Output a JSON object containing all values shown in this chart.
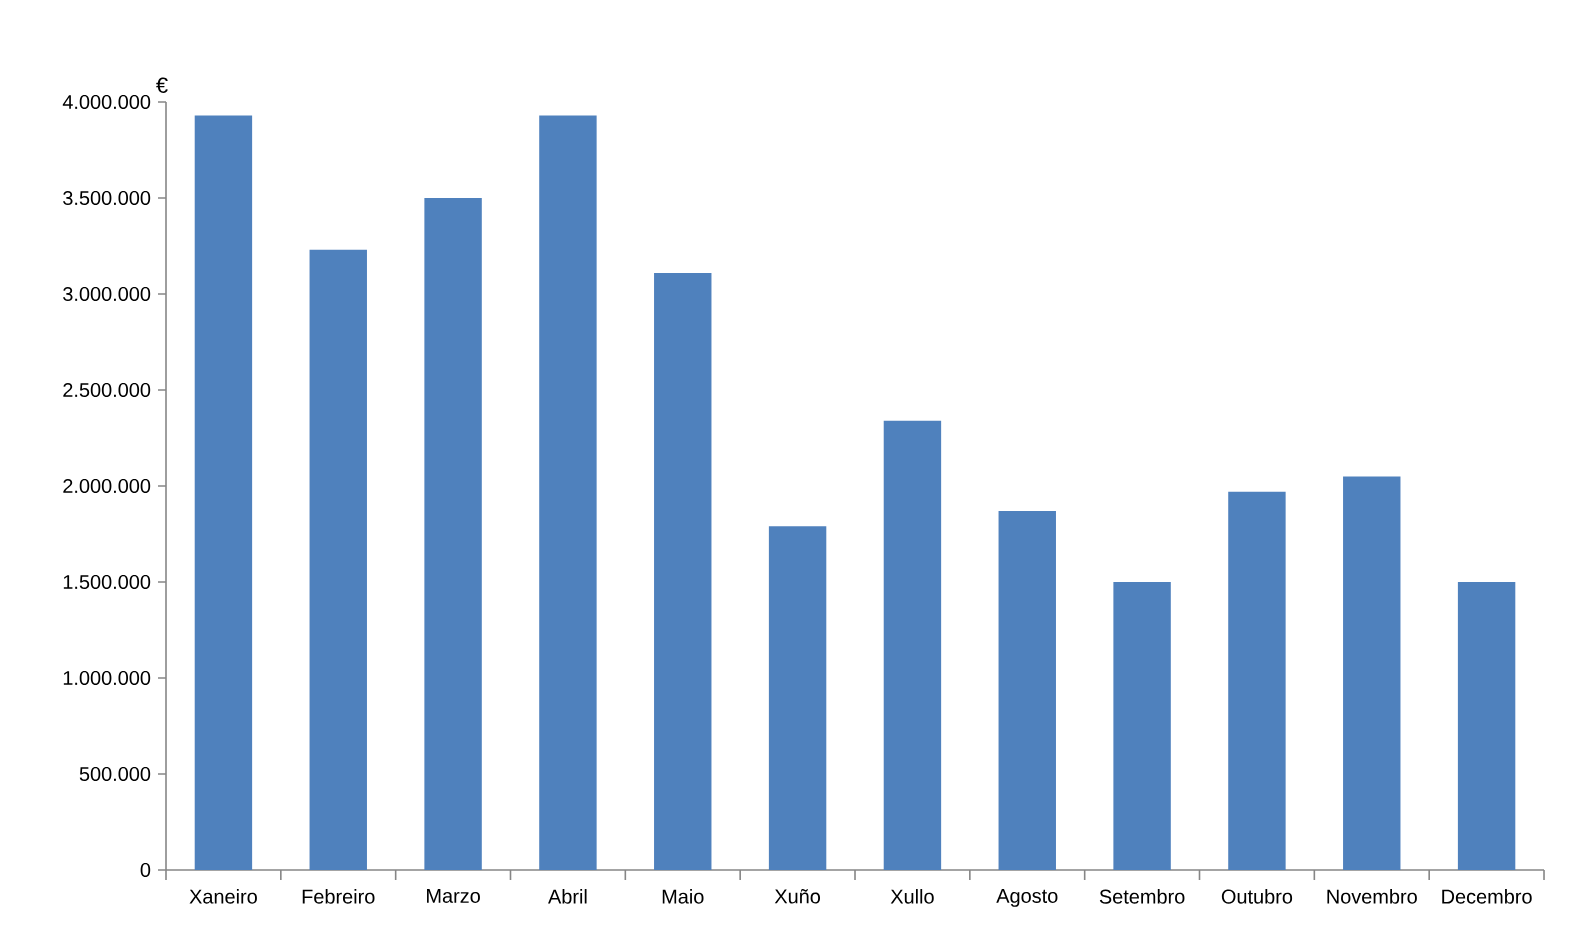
{
  "chart_data": {
    "type": "bar",
    "ylabel": "€",
    "categories": [
      "Xaneiro",
      "Febreiro",
      "Marzo",
      "Abril",
      "Maio",
      "Xuño",
      "Xullo",
      "Agosto",
      "Setembro",
      "Outubro",
      "Novembro",
      "Decembro"
    ],
    "values": [
      3930000,
      3230000,
      3500000,
      3930000,
      3110000,
      1790000,
      2340000,
      1870000,
      1500000,
      1970000,
      2050000,
      1500000
    ],
    "color": "#4f81bd",
    "ylim": [
      0,
      4000000
    ],
    "yticks": [
      0,
      {
        "value": 500000,
        "label": "500.000"
      },
      {
        "value": 1000000,
        "label": "1.000.000"
      },
      {
        "value": 1500000,
        "label": "1.500.000"
      },
      {
        "value": 2000000,
        "label": "2.000.000"
      },
      {
        "value": 2500000,
        "label": "2.500.000"
      },
      {
        "value": 3000000,
        "label": "3.000.000"
      },
      {
        "value": 3500000,
        "label": "3.500.000"
      },
      {
        "value": 4000000,
        "label": "4.000.000"
      }
    ]
  }
}
